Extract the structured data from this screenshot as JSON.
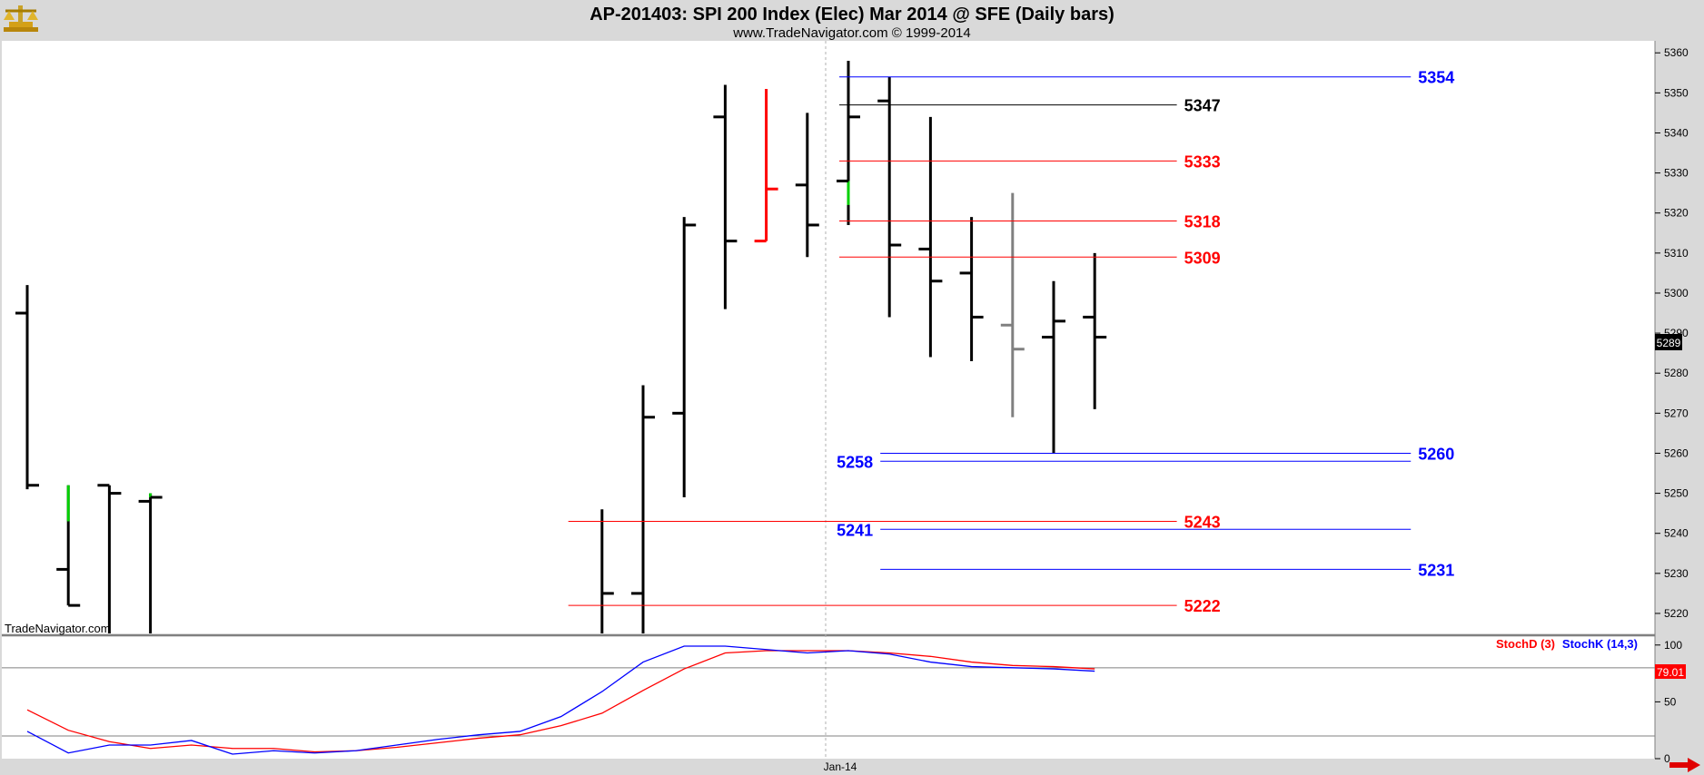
{
  "header": {
    "title": "AP-201403:  SPI 200 Index (Elec) Mar 2014 @ SFE  (Daily bars)",
    "subtitle": "www.TradeNavigator.com © 1999-2014"
  },
  "watermark": "TradeNavigator.com",
  "icons": {
    "logo": "brass-scale-logo-icon",
    "arrow": "red-right-arrow-icon"
  },
  "colors": {
    "up": "#000000",
    "red": "#ff0000",
    "green": "#00d000",
    "gray": "#808080",
    "blue": "#0000ff",
    "bg": "#ffffff",
    "frame": "#d9d9d9"
  },
  "chart_data": [
    {
      "type": "ohlc",
      "ylim": [
        5215,
        5363
      ],
      "yticks": [
        "5220",
        "5230",
        "5240",
        "5250",
        "5260",
        "5270",
        "5280",
        "5290",
        "5300",
        "5310",
        "5320",
        "5330",
        "5340",
        "5350",
        "5360"
      ],
      "x_date_label": "Jan-14",
      "last_price_label": "5289",
      "bars": [
        {
          "i": 0,
          "o": 5295,
          "h": 5302,
          "l": 5251,
          "c": 5252,
          "color": "#000000"
        },
        {
          "i": 1,
          "o": 5231,
          "h": 5252,
          "l": 5222,
          "c": 5222,
          "color": "#000000",
          "upper_color": "#00d000",
          "upper_from": 5243
        },
        {
          "i": 2,
          "o": 5252,
          "h": 5252,
          "l": 5213,
          "c": 5250,
          "color": "#000000"
        },
        {
          "i": 3,
          "o": 5248,
          "h": 5250,
          "l": 5213,
          "c": 5249,
          "color": "#000000",
          "upper_color": "#00d000",
          "upper_from": 5249
        },
        {
          "i": 14,
          "o": 5213,
          "h": 5246,
          "l": 5213,
          "c": 5225,
          "color": "#000000"
        },
        {
          "i": 15,
          "o": 5225,
          "h": 5277,
          "l": 5213,
          "c": 5269,
          "color": "#000000"
        },
        {
          "i": 16,
          "o": 5270,
          "h": 5319,
          "l": 5249,
          "c": 5317,
          "color": "#000000"
        },
        {
          "i": 17,
          "o": 5344,
          "h": 5352,
          "l": 5296,
          "c": 5313,
          "color": "#000000"
        },
        {
          "i": 18,
          "o": 5313,
          "h": 5351,
          "l": 5313,
          "c": 5326,
          "color": "#ff0000"
        },
        {
          "i": 19,
          "o": 5327,
          "h": 5345,
          "l": 5309,
          "c": 5317,
          "color": "#000000"
        },
        {
          "i": 20,
          "o": 5328,
          "h": 5358,
          "l": 5317,
          "c": 5344,
          "color": "#000000",
          "lower_color": "#00d000",
          "lower_to": 5322
        },
        {
          "i": 21,
          "o": 5348,
          "h": 5354,
          "l": 5294,
          "c": 5312,
          "color": "#000000"
        },
        {
          "i": 22,
          "o": 5311,
          "h": 5344,
          "l": 5284,
          "c": 5303,
          "color": "#000000"
        },
        {
          "i": 23,
          "o": 5305,
          "h": 5319,
          "l": 5283,
          "c": 5294,
          "color": "#000000"
        },
        {
          "i": 24,
          "o": 5292,
          "h": 5325,
          "l": 5269,
          "c": 5286,
          "color": "#808080"
        },
        {
          "i": 25,
          "o": 5289,
          "h": 5303,
          "l": 5260,
          "c": 5293,
          "color": "#000000"
        },
        {
          "i": 26,
          "o": 5294,
          "h": 5310,
          "l": 5271,
          "c": 5289,
          "color": "#000000"
        }
      ],
      "levels": [
        {
          "value": 5354,
          "label": "5354",
          "color": "#0000ff",
          "x_from": 20,
          "x_to": 33.7,
          "label_side": "right-far"
        },
        {
          "value": 5347,
          "label": "5347",
          "color": "#000000",
          "x_from": 20,
          "x_to": 28,
          "label_side": "right"
        },
        {
          "value": 5333,
          "label": "5333",
          "color": "#ff0000",
          "x_from": 20,
          "x_to": 28,
          "label_side": "right"
        },
        {
          "value": 5318,
          "label": "5318",
          "color": "#ff0000",
          "x_from": 20,
          "x_to": 28,
          "label_side": "right"
        },
        {
          "value": 5309,
          "label": "5309",
          "color": "#ff0000",
          "x_from": 20,
          "x_to": 28,
          "label_side": "right"
        },
        {
          "value": 5260,
          "label": "5260",
          "color": "#0000ff",
          "x_from": 21,
          "x_to": 33.7,
          "label_side": "right-far"
        },
        {
          "value": 5258,
          "label": "5258",
          "color": "#0000ff",
          "x_from": 21,
          "x_to": 33.7,
          "label_side": "left"
        },
        {
          "value": 5243,
          "label": "5243",
          "color": "#ff0000",
          "x_from": 13.4,
          "x_to": 28,
          "label_side": "right"
        },
        {
          "value": 5241,
          "label": "5241",
          "color": "#0000ff",
          "x_from": 21,
          "x_to": 33.7,
          "label_side": "left"
        },
        {
          "value": 5231,
          "label": "5231",
          "color": "#0000ff",
          "x_from": 21,
          "x_to": 33.7,
          "label_side": "right-far"
        },
        {
          "value": 5222,
          "label": "5222",
          "color": "#ff0000",
          "x_from": 13.4,
          "x_to": 28,
          "label_side": "right"
        }
      ]
    },
    {
      "type": "line",
      "ylim": [
        0,
        107
      ],
      "yticks": [
        "0",
        "50",
        "100"
      ],
      "legend": [
        {
          "label": "StochD (3)",
          "color": "#ff0000"
        },
        {
          "label": "StochK (14,3)",
          "color": "#0000ff"
        }
      ],
      "last_value_label": "79.01",
      "hlines": [
        80,
        20
      ],
      "x": [
        0,
        1,
        2,
        3,
        4,
        5,
        6,
        7,
        8,
        9,
        10,
        11,
        12,
        13,
        14,
        15,
        16,
        17,
        18,
        19,
        20,
        21,
        22,
        23,
        24,
        25,
        26
      ],
      "series": [
        {
          "name": "StochD (3)",
          "color": "#ff0000",
          "values": [
            43,
            25,
            15,
            9,
            12,
            9,
            9,
            6,
            7,
            10,
            14,
            18,
            21,
            29,
            40,
            60,
            79,
            93,
            95,
            95,
            95,
            93,
            90,
            85,
            82,
            81,
            79
          ]
        },
        {
          "name": "StochK (14,3)",
          "color": "#0000ff",
          "values": [
            24,
            5,
            12,
            12,
            16,
            4,
            7,
            5,
            7,
            12,
            17,
            21,
            24,
            37,
            59,
            85,
            99,
            99,
            96,
            93,
            95,
            92,
            85,
            81,
            80,
            79,
            77
          ]
        }
      ]
    }
  ]
}
